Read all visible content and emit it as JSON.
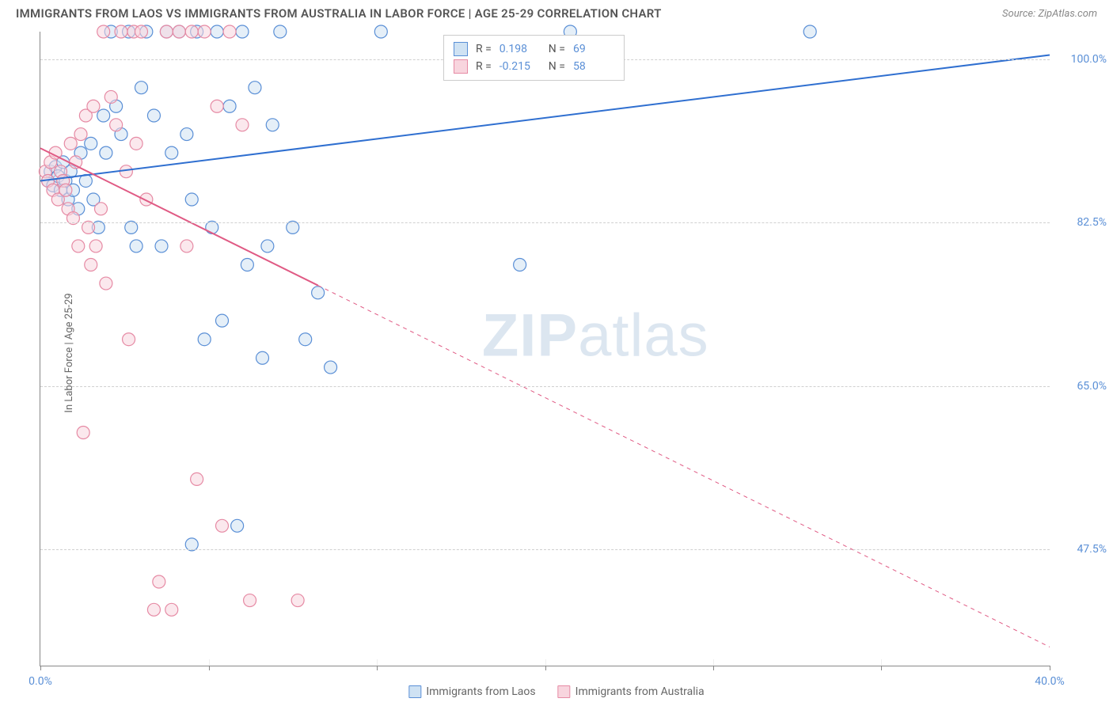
{
  "header": {
    "title": "IMMIGRANTS FROM LAOS VS IMMIGRANTS FROM AUSTRALIA IN LABOR FORCE | AGE 25-29 CORRELATION CHART",
    "source_prefix": "Source: ",
    "source_name": "ZipAtlas.com"
  },
  "watermark": {
    "bold": "ZIP",
    "rest": "atlas"
  },
  "chart": {
    "type": "scatter-with-regression",
    "y_axis_label": "In Labor Force | Age 25-29",
    "x_min": 0.0,
    "x_max": 40.0,
    "y_min": 35.0,
    "y_max": 103.0,
    "x_ticks": [
      0.0,
      40.0
    ],
    "x_tick_labels": [
      "0.0%",
      "40.0%"
    ],
    "x_minor_ticks": [
      0,
      6.67,
      13.33,
      20.0,
      26.67,
      33.33,
      40.0
    ],
    "y_gridlines": [
      47.5,
      65.0,
      82.5,
      100.0
    ],
    "y_tick_labels": [
      "47.5%",
      "65.0%",
      "82.5%",
      "100.0%"
    ],
    "background_color": "#ffffff",
    "grid_color": "#d0d0d0",
    "axis_color": "#888888",
    "marker_radius": 8,
    "marker_stroke_width": 1.2,
    "line_width": 2,
    "series": [
      {
        "name": "Immigrants from Laos",
        "fill": "#cfe2f3",
        "stroke": "#5a8fd6",
        "line_color": "#2f6fd0",
        "r": 0.198,
        "n": 69,
        "regression": {
          "x1": 0.0,
          "y1": 87.0,
          "x2": 40.0,
          "y2": 100.5,
          "solid_until_x": 40.0
        },
        "points": [
          [
            0.3,
            87
          ],
          [
            0.4,
            88
          ],
          [
            0.5,
            86.5
          ],
          [
            0.6,
            88.5
          ],
          [
            0.7,
            87.5
          ],
          [
            0.8,
            86
          ],
          [
            0.9,
            89
          ],
          [
            1.0,
            87
          ],
          [
            1.1,
            85
          ],
          [
            1.2,
            88
          ],
          [
            1.3,
            86
          ],
          [
            1.5,
            84
          ],
          [
            1.6,
            90
          ],
          [
            1.8,
            87
          ],
          [
            2.0,
            91
          ],
          [
            2.1,
            85
          ],
          [
            2.3,
            82
          ],
          [
            2.5,
            94
          ],
          [
            2.6,
            90
          ],
          [
            2.8,
            103
          ],
          [
            3.0,
            95
          ],
          [
            3.2,
            92
          ],
          [
            3.5,
            103
          ],
          [
            3.6,
            82
          ],
          [
            3.8,
            80
          ],
          [
            4.0,
            97
          ],
          [
            4.2,
            103
          ],
          [
            4.5,
            94
          ],
          [
            4.8,
            80
          ],
          [
            5.0,
            103
          ],
          [
            5.2,
            90
          ],
          [
            5.5,
            103
          ],
          [
            5.8,
            92
          ],
          [
            6.0,
            85
          ],
          [
            6.0,
            48
          ],
          [
            6.2,
            103
          ],
          [
            6.5,
            70
          ],
          [
            6.8,
            82
          ],
          [
            7.0,
            103
          ],
          [
            7.2,
            72
          ],
          [
            7.5,
            95
          ],
          [
            7.8,
            50
          ],
          [
            8.0,
            103
          ],
          [
            8.2,
            78
          ],
          [
            8.5,
            97
          ],
          [
            8.8,
            68
          ],
          [
            9.0,
            80
          ],
          [
            9.2,
            93
          ],
          [
            9.5,
            103
          ],
          [
            10.0,
            82
          ],
          [
            10.5,
            70
          ],
          [
            11.0,
            75
          ],
          [
            11.5,
            67
          ],
          [
            13.5,
            103
          ],
          [
            19.0,
            78
          ],
          [
            21.0,
            103
          ],
          [
            30.5,
            103
          ]
        ]
      },
      {
        "name": "Immigrants from Australia",
        "fill": "#f8d5de",
        "stroke": "#e68aa4",
        "line_color": "#e05a84",
        "r": -0.215,
        "n": 58,
        "regression": {
          "x1": 0.0,
          "y1": 90.5,
          "x2": 40.0,
          "y2": 37.0,
          "solid_until_x": 11.0
        },
        "points": [
          [
            0.2,
            88
          ],
          [
            0.3,
            87
          ],
          [
            0.4,
            89
          ],
          [
            0.5,
            86
          ],
          [
            0.6,
            90
          ],
          [
            0.7,
            85
          ],
          [
            0.8,
            88
          ],
          [
            0.9,
            87
          ],
          [
            1.0,
            86
          ],
          [
            1.1,
            84
          ],
          [
            1.2,
            91
          ],
          [
            1.3,
            83
          ],
          [
            1.4,
            89
          ],
          [
            1.5,
            80
          ],
          [
            1.6,
            92
          ],
          [
            1.7,
            60
          ],
          [
            1.8,
            94
          ],
          [
            1.9,
            82
          ],
          [
            2.0,
            78
          ],
          [
            2.1,
            95
          ],
          [
            2.2,
            80
          ],
          [
            2.4,
            84
          ],
          [
            2.5,
            103
          ],
          [
            2.6,
            76
          ],
          [
            2.8,
            96
          ],
          [
            3.0,
            93
          ],
          [
            3.2,
            103
          ],
          [
            3.4,
            88
          ],
          [
            3.5,
            70
          ],
          [
            3.7,
            103
          ],
          [
            3.8,
            91
          ],
          [
            4.0,
            103
          ],
          [
            4.2,
            85
          ],
          [
            4.5,
            41
          ],
          [
            4.7,
            44
          ],
          [
            5.0,
            103
          ],
          [
            5.2,
            41
          ],
          [
            5.5,
            103
          ],
          [
            5.8,
            80
          ],
          [
            6.0,
            103
          ],
          [
            6.2,
            55
          ],
          [
            6.5,
            103
          ],
          [
            7.0,
            95
          ],
          [
            7.2,
            50
          ],
          [
            7.5,
            103
          ],
          [
            8.0,
            93
          ],
          [
            8.3,
            42
          ],
          [
            10.2,
            42
          ]
        ]
      }
    ]
  },
  "legend": {
    "items": [
      {
        "label": "Immigrants from Laos",
        "fill": "#cfe2f3",
        "stroke": "#5a8fd6"
      },
      {
        "label": "Immigrants from Australia",
        "fill": "#f8d5de",
        "stroke": "#e68aa4"
      }
    ]
  },
  "correlation_box": {
    "r_label": "R =",
    "n_label": "N =",
    "rows": [
      {
        "fill": "#cfe2f3",
        "stroke": "#5a8fd6",
        "r": "0.198",
        "n": "69"
      },
      {
        "fill": "#f8d5de",
        "stroke": "#e68aa4",
        "r": "-0.215",
        "n": "58"
      }
    ]
  }
}
